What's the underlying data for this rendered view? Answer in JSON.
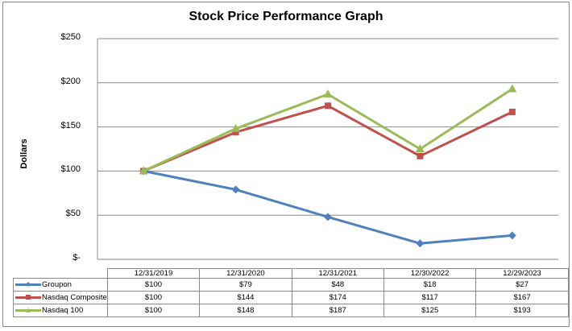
{
  "chart_data": {
    "type": "line",
    "title": "Stock Price Performance Graph",
    "xlabel": "",
    "ylabel": "Dollars",
    "ylim": [
      0,
      250
    ],
    "yticks": [
      "$-",
      "$50",
      "$100",
      "$150",
      "$200",
      "$250"
    ],
    "ytick_values": [
      0,
      50,
      100,
      150,
      200,
      250
    ],
    "grid": true,
    "legend_position": "data-table",
    "categories": [
      "12/31/2019",
      "12/31/2020",
      "12/31/2021",
      "12/30/2022",
      "12/29/2023"
    ],
    "series": [
      {
        "name": "Groupon",
        "values": [
          100,
          79,
          48,
          18,
          27
        ],
        "labels": [
          "$100",
          "$79",
          "$48",
          "$18",
          "$27"
        ],
        "color": "#4f81bd",
        "marker": "diamond"
      },
      {
        "name": "Nasdaq Composite",
        "values": [
          100,
          144,
          174,
          117,
          167
        ],
        "labels": [
          "$100",
          "$144",
          "$174",
          "$117",
          "$167"
        ],
        "color": "#c0504d",
        "marker": "square"
      },
      {
        "name": "Nasdaq 100",
        "values": [
          100,
          148,
          187,
          125,
          193
        ],
        "labels": [
          "$100",
          "$148",
          "$187",
          "$125",
          "$193"
        ],
        "color": "#9bbb59",
        "marker": "triangle"
      }
    ]
  }
}
